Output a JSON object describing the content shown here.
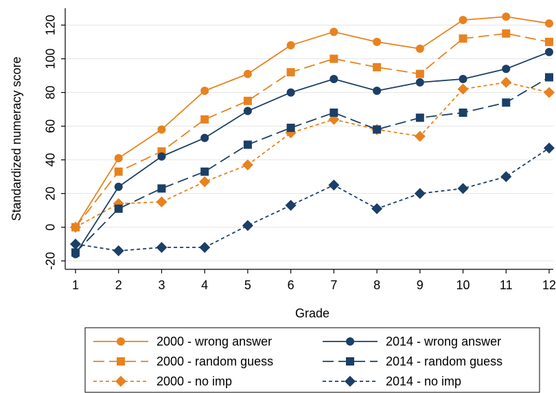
{
  "chart_data": {
    "type": "line",
    "title": "",
    "xlabel": "Grade",
    "ylabel": "Standardized numeracy score",
    "x": [
      1,
      2,
      3,
      4,
      5,
      6,
      7,
      8,
      9,
      10,
      11,
      12
    ],
    "xlim": [
      1,
      12
    ],
    "ylim": [
      -25,
      130
    ],
    "yticks": [
      -20,
      0,
      20,
      40,
      60,
      80,
      100,
      120
    ],
    "grid": "horizontal",
    "legend_position": "bottom",
    "colors": {
      "2000": "#E8821E",
      "2014": "#1B3F66"
    },
    "series": [
      {
        "name": "2000 - wrong answer",
        "color": "#E8821E",
        "marker": "circle",
        "dash": "solid",
        "values": [
          0,
          41,
          58,
          81,
          91,
          108,
          116,
          110,
          106,
          123,
          125,
          121
        ]
      },
      {
        "name": "2000 - random guess",
        "color": "#E8821E",
        "marker": "square",
        "dash": "long",
        "values": [
          0,
          33,
          45,
          64,
          75,
          92,
          100,
          95,
          91,
          112,
          115,
          110
        ]
      },
      {
        "name": "2000 - no imp",
        "color": "#E8821E",
        "marker": "diamond",
        "dash": "short",
        "values": [
          0,
          14,
          15,
          27,
          37,
          56,
          64,
          58,
          54,
          82,
          86,
          80
        ]
      },
      {
        "name": "2014 - wrong answer",
        "color": "#1B3F66",
        "marker": "circle",
        "dash": "solid",
        "values": [
          -16,
          24,
          42,
          53,
          69,
          80,
          88,
          81,
          86,
          88,
          94,
          104
        ]
      },
      {
        "name": "2014 - random guess",
        "color": "#1B3F66",
        "marker": "square",
        "dash": "long",
        "values": [
          -15,
          11,
          23,
          33,
          49,
          59,
          68,
          58,
          65,
          68,
          74,
          89
        ]
      },
      {
        "name": "2014 - no imp",
        "color": "#1B3F66",
        "marker": "diamond",
        "dash": "short",
        "values": [
          -10,
          -14,
          -12,
          -12,
          1,
          13,
          25,
          11,
          20,
          23,
          30,
          47
        ]
      }
    ]
  }
}
